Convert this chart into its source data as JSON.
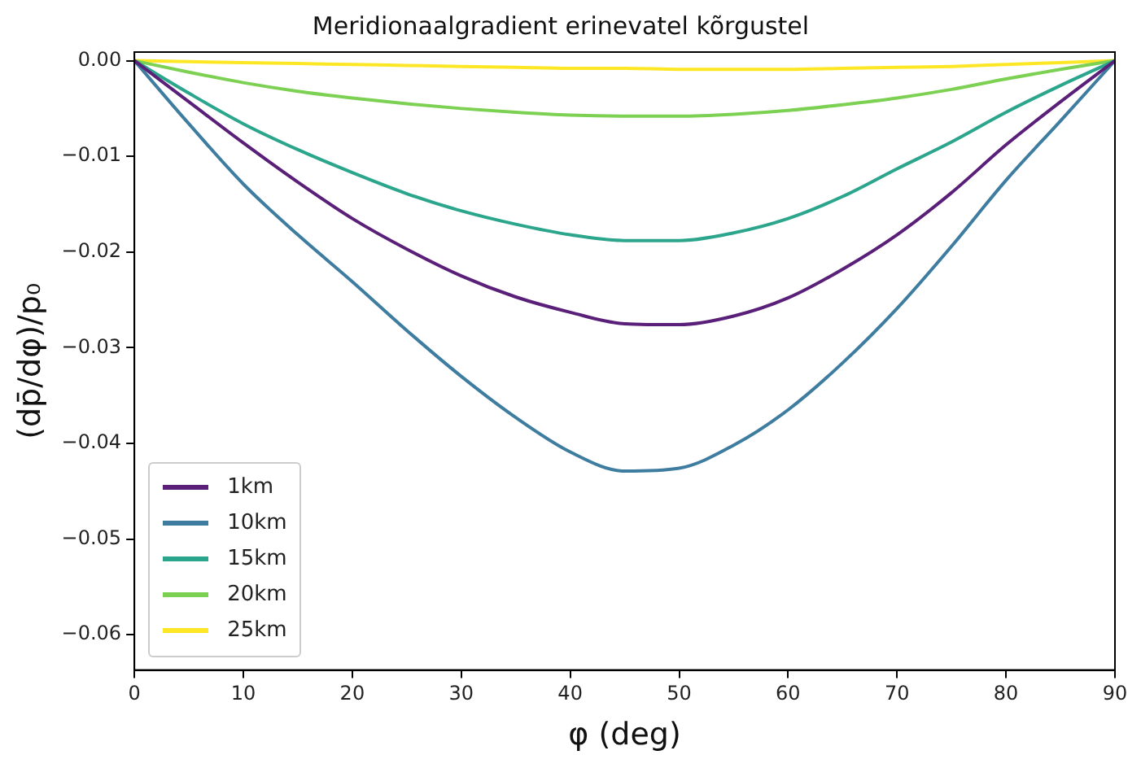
{
  "chart_data": {
    "type": "line",
    "title": "Meridionaalgradient erinevatel kõrgustel",
    "xlabel": "φ (deg)",
    "ylabel": "(dp̄/dφ)/p₀",
    "x": [
      0,
      5,
      10,
      15,
      20,
      25,
      30,
      35,
      40,
      45,
      50,
      55,
      60,
      65,
      70,
      75,
      80,
      85,
      90
    ],
    "xlim": [
      0,
      90
    ],
    "xticks": [
      0,
      10,
      20,
      30,
      40,
      50,
      60,
      70,
      80,
      90
    ],
    "ylim": [
      -0.0637,
      0.0009
    ],
    "yticks": [
      {
        "value": 0,
        "label": "0.00"
      },
      {
        "value": -0.01,
        "label": "−0.01"
      },
      {
        "value": -0.02,
        "label": "−0.02"
      },
      {
        "value": -0.03,
        "label": "−0.03"
      },
      {
        "value": -0.04,
        "label": "−0.04"
      },
      {
        "value": -0.05,
        "label": "−0.05"
      },
      {
        "value": -0.06,
        "label": "−0.06"
      }
    ],
    "grid": false,
    "legend": "bottom left",
    "marker": "none",
    "line_style": "solid",
    "series": [
      {
        "name": "1km",
        "color": "#5a1f78",
        "values": [
          0,
          -0.0043,
          -0.0086,
          -0.0127,
          -0.0165,
          -0.0197,
          -0.0225,
          -0.0247,
          -0.0263,
          -0.0275,
          -0.0276,
          -0.0267,
          -0.0248,
          -0.0218,
          -0.0182,
          -0.0138,
          -0.0088,
          -0.0043,
          0
        ]
      },
      {
        "name": "10km",
        "color": "#3e7da0",
        "values": [
          0,
          -0.0066,
          -0.0129,
          -0.0182,
          -0.0231,
          -0.0282,
          -0.033,
          -0.0373,
          -0.0409,
          -0.0429,
          -0.0426,
          -0.0402,
          -0.0365,
          -0.0316,
          -0.0259,
          -0.0194,
          -0.0125,
          -0.0063,
          0
        ]
      },
      {
        "name": "15km",
        "color": "#2ba58b",
        "values": [
          0,
          -0.0034,
          -0.0066,
          -0.0093,
          -0.0117,
          -0.0139,
          -0.0157,
          -0.0171,
          -0.0182,
          -0.0188,
          -0.0188,
          -0.018,
          -0.0165,
          -0.0142,
          -0.0113,
          -0.0085,
          -0.0054,
          -0.0026,
          0
        ]
      },
      {
        "name": "20km",
        "color": "#7cd152",
        "values": [
          0,
          -0.0012,
          -0.0023,
          -0.0032,
          -0.0039,
          -0.0045,
          -0.005,
          -0.0054,
          -0.0057,
          -0.0058,
          -0.0058,
          -0.0056,
          -0.0052,
          -0.0046,
          -0.0039,
          -0.003,
          -0.0019,
          -0.0009,
          0
        ]
      },
      {
        "name": "25km",
        "color": "#fde725",
        "values": [
          0,
          -0.0001,
          -0.0002,
          -0.0003,
          -0.0004,
          -0.0005,
          -0.0006,
          -0.0007,
          -0.0008,
          -0.0008,
          -0.0009,
          -0.0009,
          -0.0009,
          -0.0008,
          -0.0007,
          -0.0006,
          -0.0004,
          -0.0002,
          0
        ]
      }
    ]
  }
}
